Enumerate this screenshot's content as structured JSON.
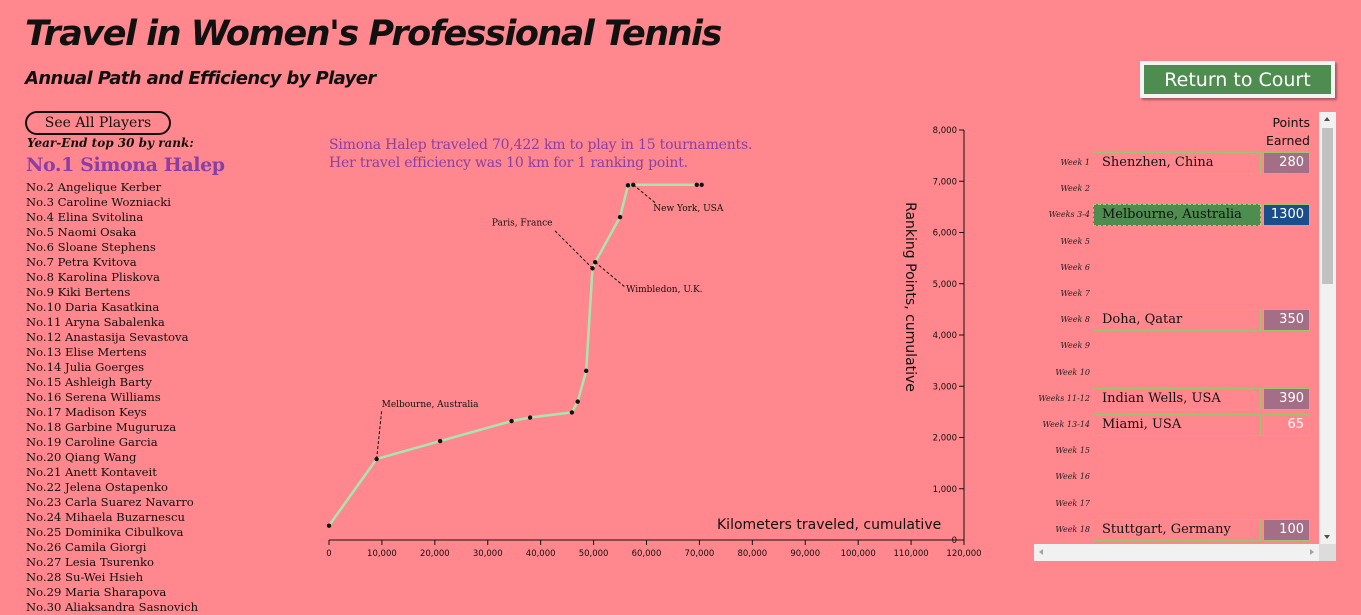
{
  "header": {
    "title": "Travel in Women's Professional Tennis",
    "subtitle": "Annual Path and Efficiency by Player",
    "return_button": "Return to Court"
  },
  "sidebar": {
    "see_all_button": "See All Players",
    "rank_heading": "Year-End top 30 by rank:",
    "selected_player": "No.1 Simona Halep",
    "players": [
      "No.2 Angelique Kerber",
      "No.3 Caroline Wozniacki",
      "No.4 Elina Svitolina",
      "No.5 Naomi Osaka",
      "No.6 Sloane Stephens",
      "No.7 Petra Kvitova",
      "No.8 Karolina Pliskova",
      "No.9 Kiki Bertens",
      "No.10 Daria Kasatkina",
      "No.11 Aryna Sabalenka",
      "No.12 Anastasija Sevastova",
      "No.13 Elise Mertens",
      "No.14 Julia Goerges",
      "No.15 Ashleigh Barty",
      "No.16 Serena Williams",
      "No.17 Madison Keys",
      "No.18 Garbine Muguruza",
      "No.19 Caroline Garcia",
      "No.20 Qiang Wang",
      "No.21 Anett Kontaveit",
      "No.22 Jelena Ostapenko",
      "No.23 Carla Suarez Navarro",
      "No.24 Mihaela Buzarnescu",
      "No.25 Dominika Cibulkova",
      "No.26 Camila Giorgi",
      "No.27 Lesia Tsurenko",
      "No.28 Su-Wei Hsieh",
      "No.29 Maria Sharapova",
      "No.30 Aliaksandra Sasnovich"
    ]
  },
  "summary": {
    "line1": "Simona Halep traveled 70,422 km to play in 15 tournaments.",
    "line2": "Her travel efficiency was 10 km for 1 ranking point."
  },
  "colors": {
    "background": "#ff878d",
    "path_line": "#a8e6b0",
    "accent_purple": "#8a3ea8",
    "grand_slam": "#4e8c50",
    "points_slam": "#1a4e8a",
    "points_regular": "#a46e86"
  },
  "chart_data": {
    "type": "line",
    "xlabel": "Kilometers traveled, cumulative",
    "ylabel": "Ranking Points, cumulative",
    "xlim": [
      0,
      120000
    ],
    "ylim": [
      0,
      8000
    ],
    "x_ticks": [
      "0",
      "10,000",
      "20,000",
      "30,000",
      "40,000",
      "50,000",
      "60,000",
      "70,000",
      "80,000",
      "90,000",
      "100,000",
      "110,000",
      "120,000"
    ],
    "y_ticks": [
      "0",
      "1,000",
      "2,000",
      "3,000",
      "4,000",
      "5,000",
      "6,000",
      "7,000",
      "8,000"
    ],
    "points": [
      {
        "x": 0,
        "y": 280
      },
      {
        "x": 9000,
        "y": 1580
      },
      {
        "x": 21000,
        "y": 1930
      },
      {
        "x": 34500,
        "y": 2320
      },
      {
        "x": 38000,
        "y": 2390
      },
      {
        "x": 45900,
        "y": 2490
      },
      {
        "x": 47000,
        "y": 2700
      },
      {
        "x": 48600,
        "y": 3300
      },
      {
        "x": 49800,
        "y": 5300
      },
      {
        "x": 50300,
        "y": 5420
      },
      {
        "x": 55000,
        "y": 6300
      },
      {
        "x": 56500,
        "y": 6920
      },
      {
        "x": 57500,
        "y": 6930
      },
      {
        "x": 69500,
        "y": 6930
      },
      {
        "x": 70422,
        "y": 6930
      }
    ],
    "annotations": [
      {
        "label": "Melbourne, Australia",
        "x": 9000,
        "y": 1580
      },
      {
        "label": "Paris, France",
        "x": 49800,
        "y": 5300
      },
      {
        "label": "Wimbledon, U.K.",
        "x": 50300,
        "y": 5420
      },
      {
        "label": "New York, USA",
        "x": 57500,
        "y": 6930
      }
    ]
  },
  "schedule": {
    "points_header_1": "Points",
    "points_header_2": "Earned",
    "weeks": [
      {
        "week": "Week 1",
        "tournament": "Shenzhen, China",
        "points": "280",
        "slam": false
      },
      {
        "week": "Week 2"
      },
      {
        "week": "Weeks 3-4",
        "tournament": "Melbourne, Australia",
        "points": "1300",
        "slam": true
      },
      {
        "week": "Week 5"
      },
      {
        "week": "Week 6"
      },
      {
        "week": "Week 7"
      },
      {
        "week": "Week 8",
        "tournament": "Doha, Qatar",
        "points": "350",
        "slam": false
      },
      {
        "week": "Week 9"
      },
      {
        "week": "Week 10"
      },
      {
        "week": "Weeks 11-12",
        "tournament": "Indian Wells, USA",
        "points": "390",
        "slam": false
      },
      {
        "week": "Week 13-14",
        "tournament": "Miami, USA",
        "points": "65",
        "slam": false
      },
      {
        "week": "Week 15"
      },
      {
        "week": "Week 16"
      },
      {
        "week": "Week 17"
      },
      {
        "week": "Week 18",
        "tournament": "Stuttgart, Germany",
        "points": "100",
        "slam": false
      }
    ]
  }
}
